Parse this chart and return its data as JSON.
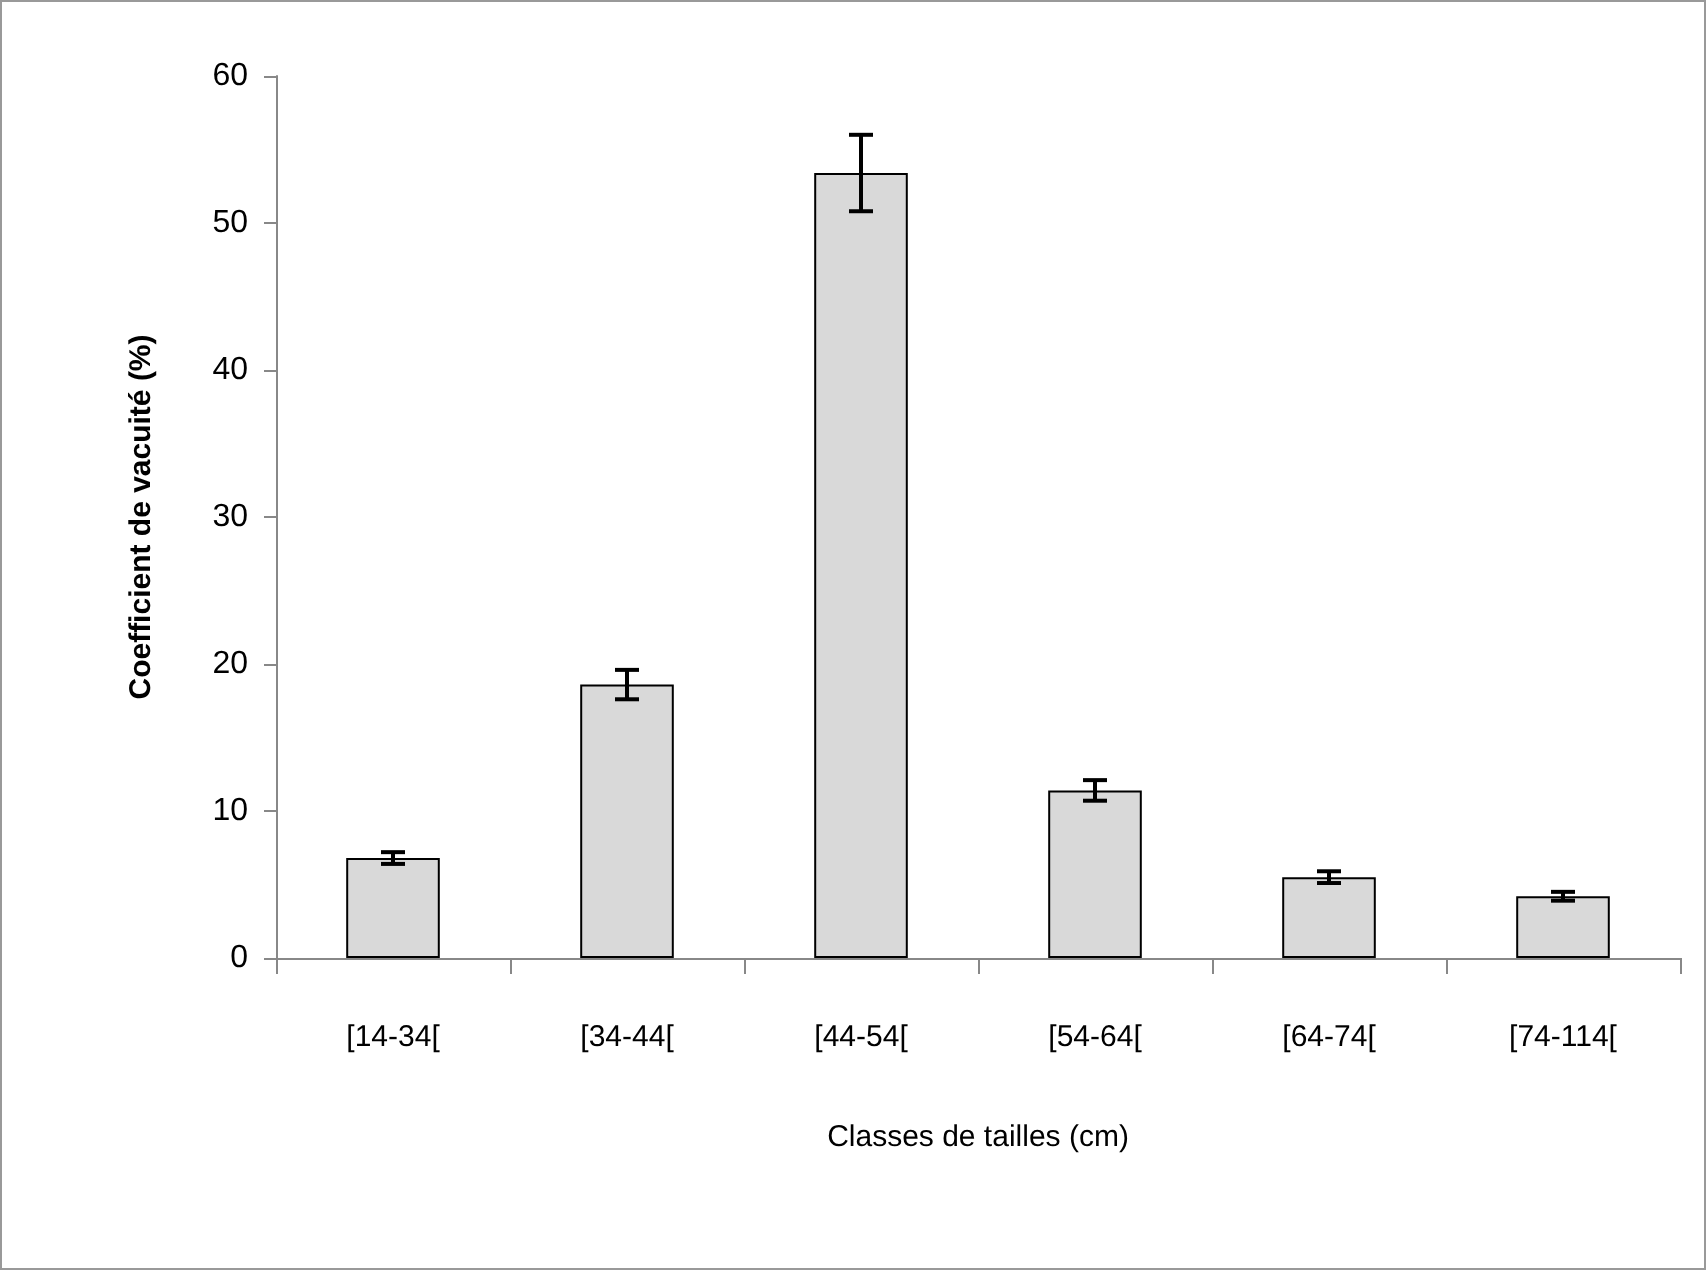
{
  "chart_data": {
    "type": "bar",
    "xlabel": "Classes de tailles (cm)",
    "ylabel": "Coefficient de vacuité (%)",
    "categories": [
      "[14-34[",
      "[34-44[",
      "[44-54[",
      "[54-64[",
      "[64-74[",
      "[74-114["
    ],
    "values": [
      6.8,
      18.6,
      53.4,
      11.4,
      5.5,
      4.2
    ],
    "errors": [
      0.4,
      1.0,
      2.6,
      0.7,
      0.4,
      0.3
    ],
    "color": "#d9d9d9",
    "ylim": [
      0,
      60
    ],
    "yticks": [
      0,
      10,
      20,
      30,
      40,
      50,
      60
    ],
    "grid": false
  }
}
